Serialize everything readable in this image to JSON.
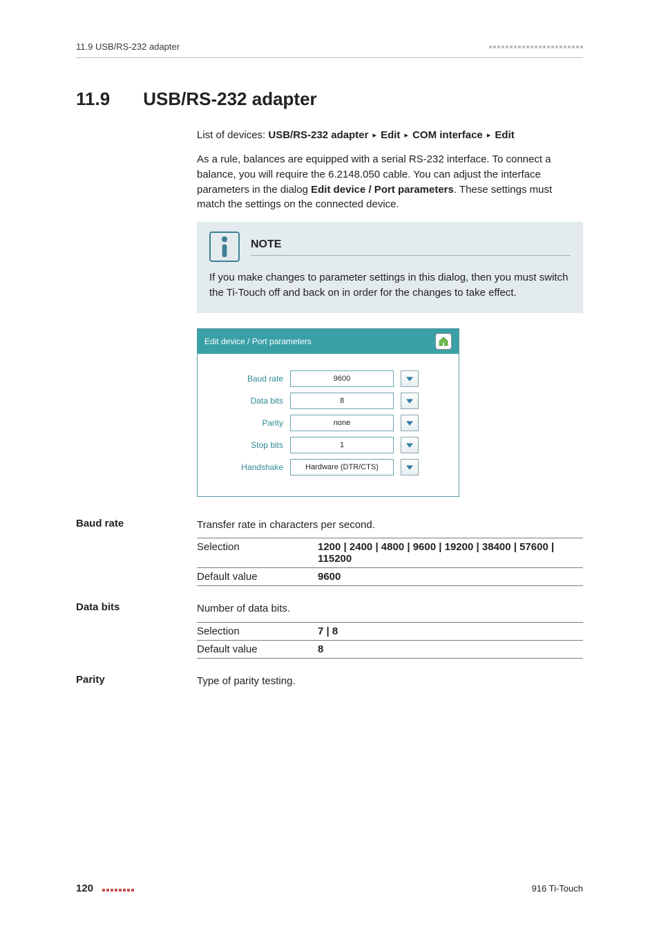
{
  "header": {
    "running": "11.9 USB/RS-232 adapter",
    "dash_count": 23,
    "dash_color": "#bdbdbd"
  },
  "section": {
    "number": "11.9",
    "title": "USB/RS-232 adapter"
  },
  "breadcrumb": {
    "prefix": "List of devices: ",
    "parts": [
      "USB/RS-232 adapter",
      "Edit",
      "COM interface",
      "Edit"
    ]
  },
  "intro": "As a rule, balances are equipped with a serial RS-232 interface. To connect a balance, you will require the 6.2148.050 cable. You can adjust the interface parameters in the dialog Edit device / Port parameters. These settings must match the settings on the connected device.",
  "intro_bold": "Edit device / Port parameters",
  "note": {
    "label": "NOTE",
    "text": "If you make changes to parameter settings in this dialog, then you must switch the Ti-Touch off and back on in order for the changes to take effect.",
    "bg": "#e3ebee",
    "accent": "#3f7f93"
  },
  "device": {
    "title": "Edit device / Port parameters",
    "titlebar_bg": "#3aa0a8",
    "params": [
      {
        "label": "Baud rate",
        "value": "9600"
      },
      {
        "label": "Data bits",
        "value": "8"
      },
      {
        "label": "Parity",
        "value": "none"
      },
      {
        "label": "Stop bits",
        "value": "1"
      },
      {
        "label": "Handshake",
        "value": "Hardware (DTR/CTS)"
      }
    ],
    "label_color": "#2f8a95",
    "dropdown_arrow_color": "#2e7eaa"
  },
  "specs": [
    {
      "heading": "Baud rate",
      "desc": "Transfer rate in characters per second.",
      "rows": [
        {
          "k": "Selection",
          "v": "1200 | 2400 | 4800 | 9600 | 19200 | 38400 | 57600 | 115200"
        },
        {
          "k": "Default value",
          "v": "9600"
        }
      ]
    },
    {
      "heading": "Data bits",
      "desc": "Number of data bits.",
      "rows": [
        {
          "k": "Selection",
          "v": "7 | 8"
        },
        {
          "k": "Default value",
          "v": "8"
        }
      ]
    },
    {
      "heading": "Parity",
      "desc": "Type of parity testing.",
      "rows": []
    }
  ],
  "footer": {
    "page": "120",
    "dash_count": 8,
    "dash_color": "#c94b4b",
    "product": "916 Ti-Touch"
  }
}
